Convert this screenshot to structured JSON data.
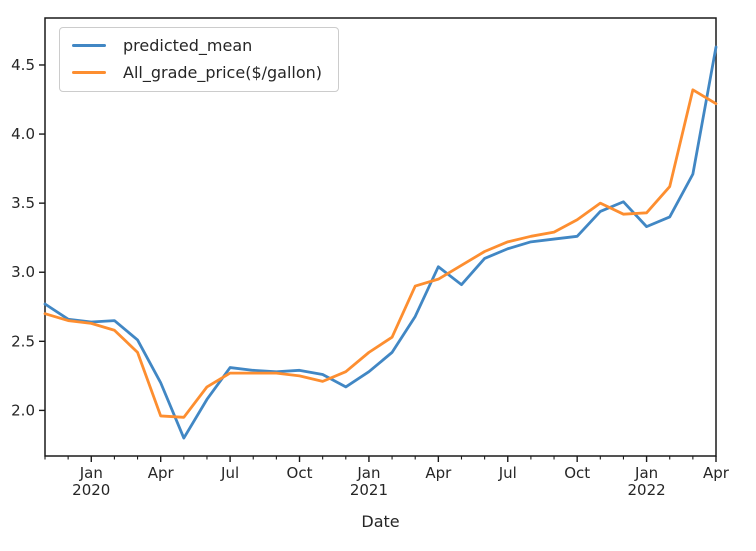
{
  "figure": {
    "background": "#ffffff",
    "spine_color": "#1a1a1a",
    "tick_label_color": "#262626"
  },
  "chart_data": {
    "type": "line",
    "title": "",
    "xlabel": "Date",
    "ylabel": "",
    "grid": false,
    "legend_position": "upper left",
    "ylim": [
      1.67,
      4.84
    ],
    "x": [
      "2019-11",
      "2019-12",
      "2020-01",
      "2020-02",
      "2020-03",
      "2020-04",
      "2020-05",
      "2020-06",
      "2020-07",
      "2020-08",
      "2020-09",
      "2020-10",
      "2020-11",
      "2020-12",
      "2021-01",
      "2021-02",
      "2021-03",
      "2021-04",
      "2021-05",
      "2021-06",
      "2021-07",
      "2021-08",
      "2021-09",
      "2021-10",
      "2021-11",
      "2021-12",
      "2022-01",
      "2022-02",
      "2022-03",
      "2022-04"
    ],
    "series": [
      {
        "name": "predicted_mean",
        "color": "#4187c4",
        "values": [
          2.77,
          2.66,
          2.64,
          2.65,
          2.51,
          2.2,
          1.8,
          2.08,
          2.31,
          2.29,
          2.28,
          2.29,
          2.26,
          2.17,
          2.28,
          2.42,
          2.68,
          3.04,
          2.91,
          3.1,
          3.17,
          3.22,
          3.24,
          3.26,
          3.44,
          3.51,
          3.33,
          3.4,
          3.71,
          4.63
        ]
      },
      {
        "name": "All_grade_price($/gallon)",
        "color": "#fd8e30",
        "values": [
          2.7,
          2.65,
          2.63,
          2.58,
          2.42,
          1.96,
          1.95,
          2.17,
          2.27,
          2.27,
          2.27,
          2.25,
          2.21,
          2.28,
          2.42,
          2.53,
          2.9,
          2.95,
          3.05,
          3.15,
          3.22,
          3.26,
          3.29,
          3.38,
          3.5,
          3.42,
          3.43,
          3.62,
          4.32,
          4.22
        ]
      }
    ],
    "y_ticks": [
      {
        "value": 2.0,
        "label": "2.0"
      },
      {
        "value": 2.5,
        "label": "2.5"
      },
      {
        "value": 3.0,
        "label": "3.0"
      },
      {
        "value": 3.5,
        "label": "3.5"
      },
      {
        "value": 4.0,
        "label": "4.0"
      },
      {
        "value": 4.5,
        "label": "4.5"
      }
    ],
    "x_major_ticks": [
      {
        "index": 2,
        "label": "Jan",
        "year": "2020"
      },
      {
        "index": 5,
        "label": "Apr"
      },
      {
        "index": 8,
        "label": "Jul"
      },
      {
        "index": 11,
        "label": "Oct"
      },
      {
        "index": 14,
        "label": "Jan",
        "year": "2021"
      },
      {
        "index": 17,
        "label": "Apr"
      },
      {
        "index": 20,
        "label": "Jul"
      },
      {
        "index": 23,
        "label": "Oct"
      },
      {
        "index": 26,
        "label": "Jan",
        "year": "2022"
      },
      {
        "index": 29,
        "label": "Apr"
      }
    ]
  }
}
